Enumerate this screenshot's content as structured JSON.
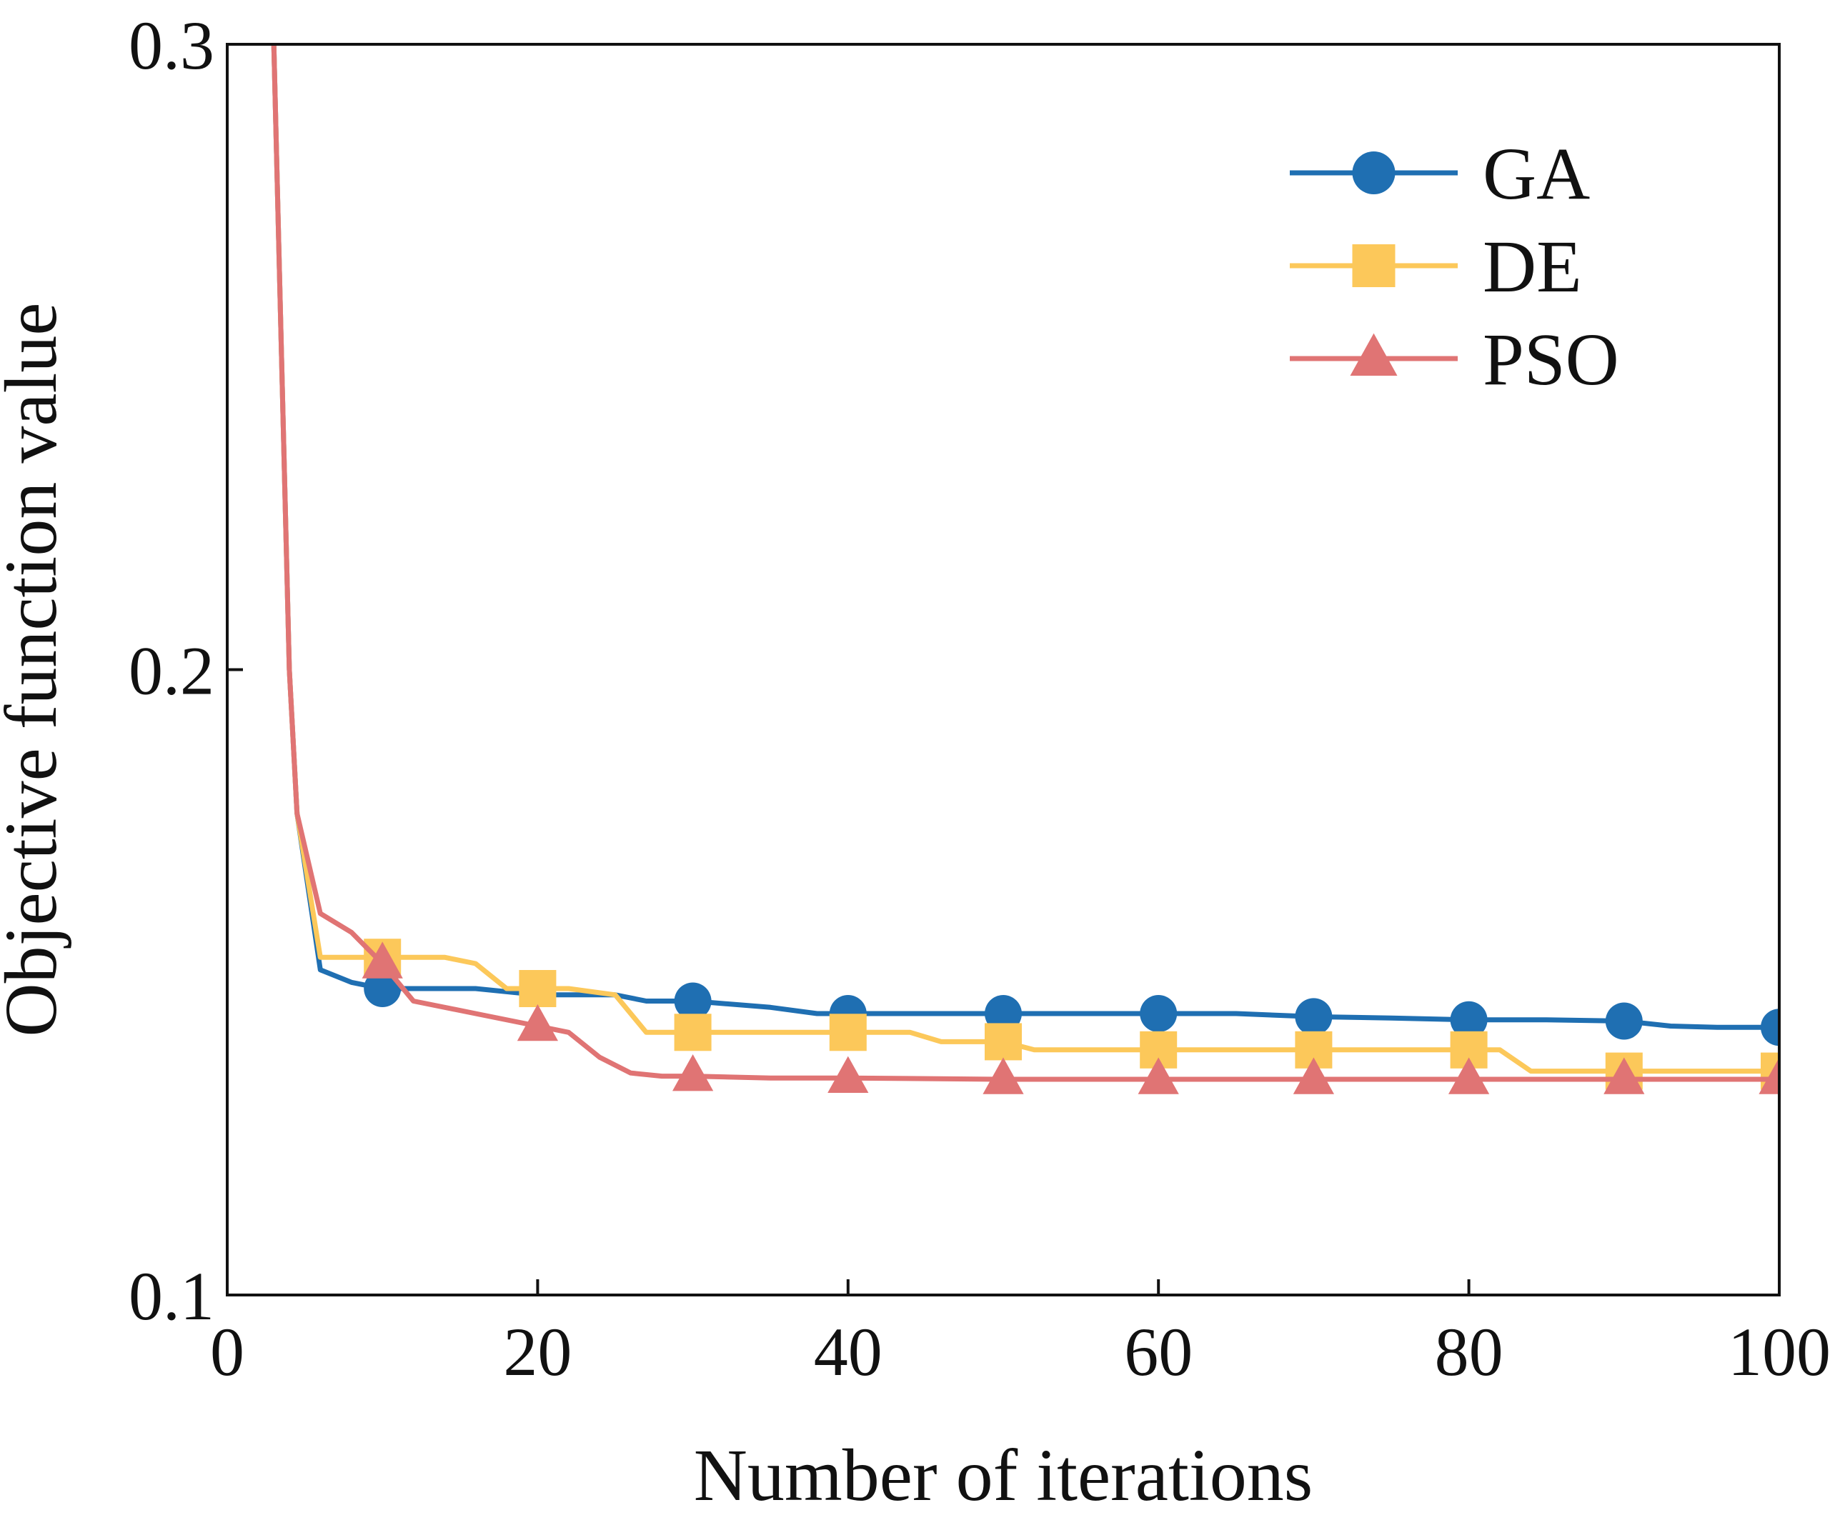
{
  "chart_data": {
    "type": "line",
    "xlabel": "Number of iterations",
    "ylabel": "Objective function value",
    "xlim": [
      0,
      100
    ],
    "ylim": [
      0.1,
      0.3
    ],
    "x_ticks": [
      0,
      20,
      40,
      60,
      80,
      100
    ],
    "x_tick_labels": [
      "0",
      "20",
      "40",
      "60",
      "80",
      "100"
    ],
    "y_ticks": [
      0.1,
      0.2,
      0.3
    ],
    "y_tick_labels": [
      "0.1",
      "0.2",
      "0.3"
    ],
    "grid": false,
    "legend_position": "top-right",
    "series": [
      {
        "name": "GA",
        "color": "#1f6fb2",
        "marker": "circle",
        "marker_x": [
          10,
          30,
          40,
          50,
          60,
          70,
          80,
          90,
          100
        ],
        "points": [
          [
            3,
            0.3
          ],
          [
            3.5,
            0.25
          ],
          [
            4,
            0.2
          ],
          [
            4.5,
            0.177
          ],
          [
            6,
            0.152
          ],
          [
            8,
            0.15
          ],
          [
            10,
            0.149
          ],
          [
            12,
            0.149
          ],
          [
            16,
            0.149
          ],
          [
            20,
            0.148
          ],
          [
            25,
            0.148
          ],
          [
            27,
            0.147
          ],
          [
            30,
            0.147
          ],
          [
            35,
            0.146
          ],
          [
            38,
            0.145
          ],
          [
            40,
            0.145
          ],
          [
            45,
            0.145
          ],
          [
            50,
            0.145
          ],
          [
            55,
            0.145
          ],
          [
            60,
            0.145
          ],
          [
            65,
            0.145
          ],
          [
            70,
            0.1445
          ],
          [
            75,
            0.1443
          ],
          [
            80,
            0.144
          ],
          [
            85,
            0.144
          ],
          [
            90,
            0.1438
          ],
          [
            93,
            0.143
          ],
          [
            96,
            0.1428
          ],
          [
            100,
            0.1428
          ]
        ]
      },
      {
        "name": "DE",
        "color": "#fcc85a",
        "marker": "square",
        "marker_x": [
          10,
          20,
          30,
          40,
          50,
          60,
          70,
          80,
          90,
          100
        ],
        "points": [
          [
            3,
            0.3
          ],
          [
            3.5,
            0.25
          ],
          [
            4,
            0.2
          ],
          [
            4.5,
            0.177
          ],
          [
            6,
            0.154
          ],
          [
            10,
            0.154
          ],
          [
            14,
            0.154
          ],
          [
            16,
            0.153
          ],
          [
            18,
            0.149
          ],
          [
            20,
            0.149
          ],
          [
            22,
            0.149
          ],
          [
            25,
            0.148
          ],
          [
            27,
            0.142
          ],
          [
            30,
            0.142
          ],
          [
            40,
            0.142
          ],
          [
            44,
            0.142
          ],
          [
            46,
            0.1405
          ],
          [
            50,
            0.1405
          ],
          [
            52,
            0.1392
          ],
          [
            60,
            0.1392
          ],
          [
            70,
            0.1392
          ],
          [
            80,
            0.1392
          ],
          [
            82,
            0.1392
          ],
          [
            84,
            0.1358
          ],
          [
            90,
            0.1358
          ],
          [
            100,
            0.1358
          ]
        ]
      },
      {
        "name": "PSO",
        "color": "#e07474",
        "marker": "triangle",
        "marker_x": [
          10,
          20,
          30,
          40,
          50,
          60,
          70,
          80,
          90,
          100
        ],
        "points": [
          [
            3,
            0.3
          ],
          [
            3.5,
            0.25
          ],
          [
            4,
            0.2
          ],
          [
            4.5,
            0.177
          ],
          [
            6,
            0.161
          ],
          [
            8,
            0.158
          ],
          [
            10,
            0.153
          ],
          [
            12,
            0.147
          ],
          [
            16,
            0.145
          ],
          [
            20,
            0.143
          ],
          [
            22,
            0.142
          ],
          [
            24,
            0.138
          ],
          [
            26,
            0.1355
          ],
          [
            28,
            0.135
          ],
          [
            30,
            0.135
          ],
          [
            35,
            0.1347
          ],
          [
            40,
            0.1347
          ],
          [
            50,
            0.1345
          ],
          [
            60,
            0.1345
          ],
          [
            70,
            0.1345
          ],
          [
            80,
            0.1345
          ],
          [
            90,
            0.1345
          ],
          [
            100,
            0.1345
          ]
        ]
      }
    ]
  }
}
